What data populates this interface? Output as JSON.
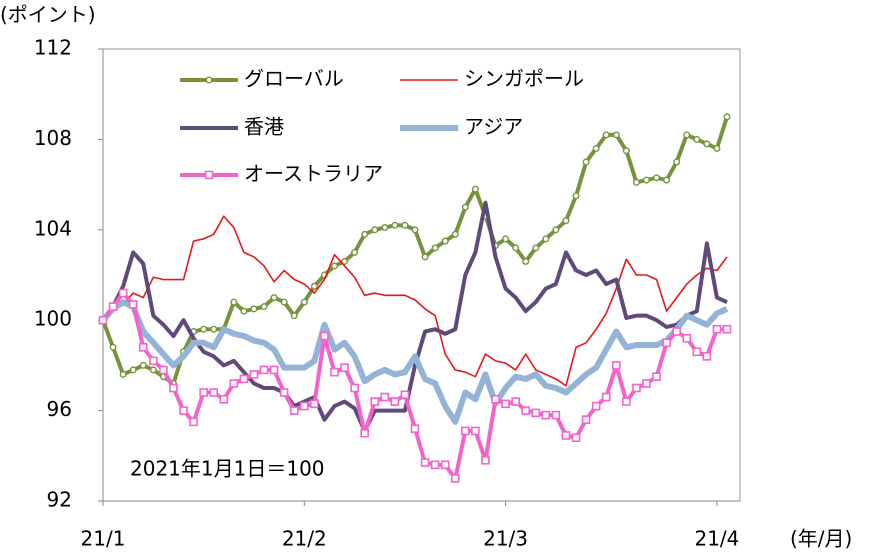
{
  "chart_data": {
    "type": "line",
    "y_label": "(ポイント)",
    "x_label": "(年/月)",
    "annotation": "2021年1月1日＝100",
    "categories": [
      "21/1",
      null,
      null,
      null,
      null,
      null,
      null,
      null,
      null,
      null,
      null,
      null,
      null,
      null,
      null,
      null,
      null,
      null,
      null,
      null,
      "21/2",
      null,
      null,
      null,
      null,
      null,
      null,
      null,
      null,
      null,
      null,
      null,
      null,
      null,
      null,
      null,
      null,
      null,
      null,
      null,
      "21/3",
      null,
      null,
      null,
      null,
      null,
      null,
      null,
      null,
      null,
      null,
      null,
      null,
      null,
      null,
      null,
      null,
      null,
      null,
      null,
      null,
      "21/4",
      null
    ],
    "ylim": [
      92,
      112
    ],
    "yticks": [
      92,
      96,
      100,
      104,
      108,
      112
    ],
    "grid": false,
    "series": [
      {
        "name": "グローバル",
        "color": "#77933c",
        "width": 4,
        "marker": "circle",
        "values": [
          100,
          98.8,
          97.6,
          97.8,
          98,
          97.8,
          97.5,
          97.2,
          98.6,
          99.5,
          99.6,
          99.6,
          99.6,
          100.8,
          100.4,
          100.5,
          100.6,
          101,
          100.8,
          100.2,
          100.8,
          101.5,
          102,
          102.4,
          102.6,
          103,
          103.8,
          104,
          104.1,
          104.2,
          104.2,
          104,
          102.8,
          103.2,
          103.5,
          103.8,
          105,
          105.8,
          104.6,
          103.3,
          103.6,
          103.2,
          102.6,
          103.2,
          103.6,
          104,
          104.4,
          105.5,
          107,
          107.6,
          108.2,
          108.2,
          107.5,
          106.1,
          106.2,
          106.3,
          106.2,
          107,
          108.2,
          108,
          107.8,
          107.6,
          109
        ]
      },
      {
        "name": "シンガポール",
        "color": "#e3191c",
        "width": 1.6,
        "marker": "none",
        "values": [
          100,
          100.5,
          100.7,
          101.2,
          101,
          101.9,
          101.8,
          101.8,
          101.8,
          103.5,
          103.6,
          103.8,
          104.6,
          104.1,
          103,
          102.8,
          102.4,
          101.7,
          102.2,
          101.8,
          101.6,
          101.2,
          101.8,
          102.9,
          102.4,
          101.9,
          101.1,
          101.2,
          101.1,
          101.1,
          101.1,
          100.9,
          100.5,
          100.2,
          98.5,
          97.8,
          97.7,
          97.5,
          98.5,
          98.2,
          98.1,
          97.8,
          98.5,
          97.8,
          97.6,
          97.4,
          97.1,
          98.8,
          99,
          99.6,
          100.3,
          101.4,
          102.7,
          102,
          102,
          101.8,
          100.4,
          101,
          101.6,
          102,
          102.3,
          102.2,
          102.8
        ]
      },
      {
        "name": "香港",
        "color": "#604a7b",
        "width": 4,
        "marker": "none",
        "values": [
          100,
          100.6,
          101.5,
          103,
          102.5,
          100.2,
          99.8,
          99.3,
          100,
          99.2,
          98.6,
          98.4,
          98,
          98.2,
          97.7,
          97.2,
          97,
          97,
          96.8,
          96.2,
          96.4,
          96.6,
          95.6,
          96.2,
          96.4,
          96.1,
          95.1,
          96,
          96,
          96,
          96,
          98,
          99.5,
          99.6,
          99.4,
          99.6,
          102,
          103,
          105.2,
          102.8,
          101.4,
          101,
          100.4,
          100.8,
          101.4,
          101.6,
          103,
          102.2,
          102,
          102.2,
          101.6,
          101.8,
          100.1,
          100.2,
          100.2,
          100,
          99.7,
          99.8,
          100.2,
          100.4,
          103.4,
          101,
          100.8
        ]
      },
      {
        "name": "アジア",
        "color": "#95b3d7",
        "width": 6,
        "marker": "none",
        "values": [
          100,
          100.5,
          100.8,
          100.6,
          99.5,
          99,
          98.5,
          98,
          98.4,
          99,
          99,
          98.8,
          99.6,
          99.4,
          99.3,
          99.1,
          99,
          98.7,
          97.9,
          97.9,
          97.9,
          98.2,
          99.8,
          98.7,
          99,
          98.4,
          97.3,
          97.6,
          97.8,
          97.6,
          97.7,
          98.4,
          97.4,
          97.2,
          96.2,
          95.5,
          96.8,
          96.5,
          97.6,
          96.3,
          97,
          97.5,
          97.4,
          97.6,
          97.1,
          97,
          96.8,
          97.2,
          97.6,
          97.9,
          98.7,
          99.5,
          98.8,
          98.9,
          98.9,
          98.9,
          99.1,
          99.6,
          100.2,
          100,
          99.8,
          100.3,
          100.5
        ]
      },
      {
        "name": "オーストラリア",
        "color": "#f562cc",
        "width": 4,
        "marker": "square",
        "values": [
          100,
          100.6,
          101.2,
          100.7,
          98.8,
          98.2,
          97.8,
          97,
          96,
          95.5,
          96.8,
          96.8,
          96.5,
          97.2,
          97.4,
          97.6,
          97.8,
          97.8,
          96.8,
          96,
          96.2,
          96.3,
          99.3,
          97.7,
          97.9,
          97,
          95,
          96.4,
          96.6,
          96.4,
          96.7,
          95.2,
          93.7,
          93.6,
          93.6,
          93,
          95.1,
          95.1,
          93.8,
          96.5,
          96.3,
          96.4,
          96,
          95.9,
          95.8,
          95.8,
          94.9,
          94.8,
          95.6,
          96.2,
          96.6,
          98,
          96.4,
          97,
          97.2,
          97.5,
          99,
          99.5,
          99.2,
          98.6,
          98.4,
          99.6,
          99.6
        ]
      }
    ]
  }
}
